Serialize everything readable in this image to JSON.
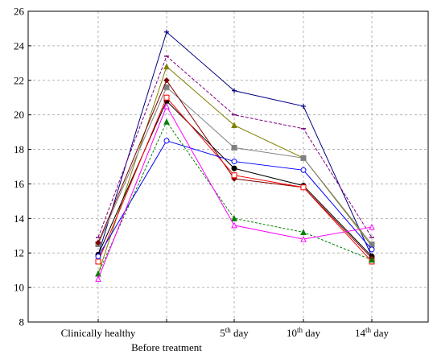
{
  "chart_data": {
    "type": "line",
    "categories": [
      {
        "label": "Clinically healthy",
        "sup": ""
      },
      {
        "label": "Before treatment",
        "sup": ""
      },
      {
        "label": "day",
        "sup": "th",
        "num": "5"
      },
      {
        "label": "day",
        "sup": "th",
        "num": "10"
      },
      {
        "label": "day",
        "sup": "th",
        "num": "14"
      }
    ],
    "ylim": [
      8,
      26
    ],
    "yticks": [
      8,
      10,
      12,
      14,
      16,
      18,
      20,
      22,
      24,
      26
    ],
    "grid": true,
    "series": [
      {
        "color": "#000080",
        "marker": "plus",
        "dash": "",
        "values": [
          11.9,
          24.8,
          21.4,
          20.5,
          11.8
        ]
      },
      {
        "color": "#800080",
        "marker": "dash",
        "dash": "4 2",
        "values": [
          12.9,
          23.4,
          20.0,
          19.2,
          12.9
        ]
      },
      {
        "color": "#808000",
        "marker": "triangle",
        "dash": "",
        "values": [
          10.8,
          22.8,
          19.4,
          17.5,
          12.4
        ]
      },
      {
        "color": "#808080",
        "marker": "square",
        "dash": "",
        "values": [
          12.5,
          21.6,
          18.1,
          17.5,
          12.5
        ]
      },
      {
        "color": "#000000",
        "marker": "circle",
        "dash": "",
        "values": [
          11.9,
          20.8,
          16.9,
          15.9,
          11.8
        ]
      },
      {
        "color": "#800000",
        "marker": "diamond",
        "dash": "",
        "values": [
          12.6,
          22.0,
          16.3,
          15.8,
          11.7
        ]
      },
      {
        "color": "#ff0000",
        "marker": "square-open",
        "dash": "",
        "values": [
          11.5,
          21.0,
          16.5,
          15.8,
          11.5
        ]
      },
      {
        "color": "#0000ff",
        "marker": "circle-open",
        "dash": "",
        "values": [
          11.8,
          18.5,
          17.3,
          16.8,
          12.2
        ]
      },
      {
        "color": "#008000",
        "marker": "triangle",
        "dash": "3 2",
        "values": [
          10.8,
          19.6,
          14.0,
          13.2,
          11.6
        ]
      },
      {
        "color": "#ff00ff",
        "marker": "triangle-open",
        "dash": "",
        "values": [
          10.5,
          20.5,
          13.6,
          12.8,
          13.5
        ]
      }
    ]
  }
}
